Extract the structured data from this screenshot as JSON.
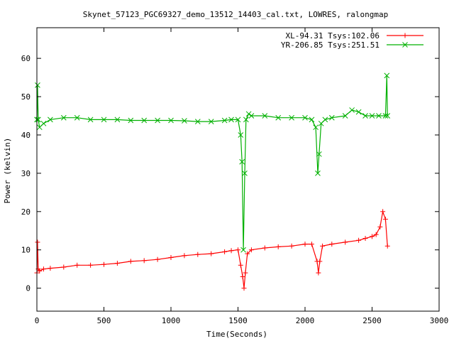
{
  "chart_data": {
    "type": "line",
    "title": "Skynet_57123_PGC69327_demo_13512_14403_cal.txt, LOWRES, ralongmap",
    "xlabel": "Time(Seconds)",
    "ylabel": "Power (kelvin)",
    "xlim": [
      0,
      3000
    ],
    "ylim": [
      -6,
      68
    ],
    "xticks": [
      0,
      500,
      1000,
      1500,
      2000,
      2500,
      3000
    ],
    "yticks": [
      0,
      10,
      20,
      30,
      40,
      50,
      60
    ],
    "grid": false,
    "legend_position": "top-right",
    "series": [
      {
        "name": "XL-94.31 Tsys:102.06",
        "color": "#ff0000",
        "marker": "plus",
        "x": [
          0,
          5,
          10,
          20,
          50,
          100,
          200,
          300,
          400,
          500,
          600,
          700,
          800,
          900,
          1000,
          1100,
          1200,
          1300,
          1400,
          1450,
          1500,
          1520,
          1535,
          1545,
          1555,
          1570,
          1600,
          1700,
          1800,
          1900,
          2000,
          2050,
          2090,
          2100,
          2110,
          2130,
          2200,
          2300,
          2400,
          2450,
          2500,
          2530,
          2560,
          2580,
          2600,
          2615
        ],
        "y": [
          4,
          12,
          5,
          4.5,
          5,
          5.2,
          5.5,
          6,
          6,
          6.2,
          6.5,
          7,
          7.2,
          7.5,
          8,
          8.5,
          8.8,
          9,
          9.5,
          9.8,
          10,
          6,
          3,
          0,
          4,
          9,
          10,
          10.5,
          10.8,
          11,
          11.5,
          11.5,
          7,
          4,
          7,
          11,
          11.5,
          12,
          12.5,
          13,
          13.5,
          14,
          16,
          20,
          18,
          11
        ]
      },
      {
        "name": "YR-206.85 Tsys:251.51",
        "color": "#00b000",
        "marker": "x",
        "x": [
          0,
          5,
          10,
          20,
          50,
          100,
          200,
          300,
          400,
          500,
          600,
          700,
          800,
          900,
          1000,
          1100,
          1200,
          1300,
          1400,
          1450,
          1500,
          1520,
          1530,
          1540,
          1550,
          1560,
          1580,
          1600,
          1700,
          1800,
          1900,
          2000,
          2050,
          2080,
          2095,
          2105,
          2120,
          2150,
          2200,
          2300,
          2350,
          2400,
          2450,
          2500,
          2550,
          2600,
          2610,
          2615
        ],
        "y": [
          44,
          53,
          44,
          42,
          43,
          44,
          44.5,
          44.5,
          44,
          44,
          44,
          43.8,
          43.8,
          43.8,
          43.8,
          43.7,
          43.5,
          43.5,
          43.8,
          44,
          44,
          40,
          33,
          10,
          30,
          44,
          45.5,
          45,
          45,
          44.5,
          44.5,
          44.5,
          44,
          42,
          30,
          35,
          43,
          44,
          44.5,
          45,
          46.5,
          46,
          45,
          45,
          45,
          45,
          55.5,
          45
        ]
      }
    ]
  }
}
